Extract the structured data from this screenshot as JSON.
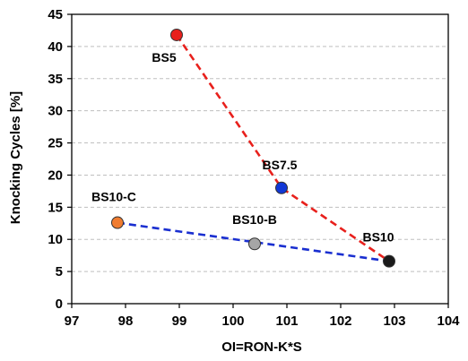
{
  "chart_data": {
    "type": "scatter",
    "xlabel": "OI=RON-K*S",
    "ylabel": "Knocking Cycles [%]",
    "xlim": [
      97,
      104
    ],
    "ylim": [
      0,
      45
    ],
    "xticks": [
      97,
      98,
      99,
      100,
      101,
      102,
      103,
      104
    ],
    "yticks": [
      0,
      5,
      10,
      15,
      20,
      25,
      30,
      35,
      40,
      45
    ],
    "grid": "horizontal dashed",
    "points": [
      {
        "label": "BS5",
        "x": 98.95,
        "y": 41.8,
        "color": "#e8201c"
      },
      {
        "label": "BS7.5",
        "x": 100.9,
        "y": 18.0,
        "color": "#1238d6"
      },
      {
        "label": "BS10",
        "x": 102.9,
        "y": 6.6,
        "color": "#1a1a1a"
      },
      {
        "label": "BS10-C",
        "x": 97.85,
        "y": 12.6,
        "color": "#f07c30"
      },
      {
        "label": "BS10-B",
        "x": 100.4,
        "y": 9.3,
        "color": "#a6a6a6"
      }
    ],
    "trendlines": [
      {
        "color": "#e8201c",
        "points": [
          [
            98.95,
            41.8
          ],
          [
            100.9,
            18.0
          ],
          [
            102.9,
            6.6
          ]
        ]
      },
      {
        "color": "#1a2fd0",
        "points": [
          [
            97.85,
            12.6
          ],
          [
            102.9,
            6.6
          ]
        ]
      }
    ]
  }
}
